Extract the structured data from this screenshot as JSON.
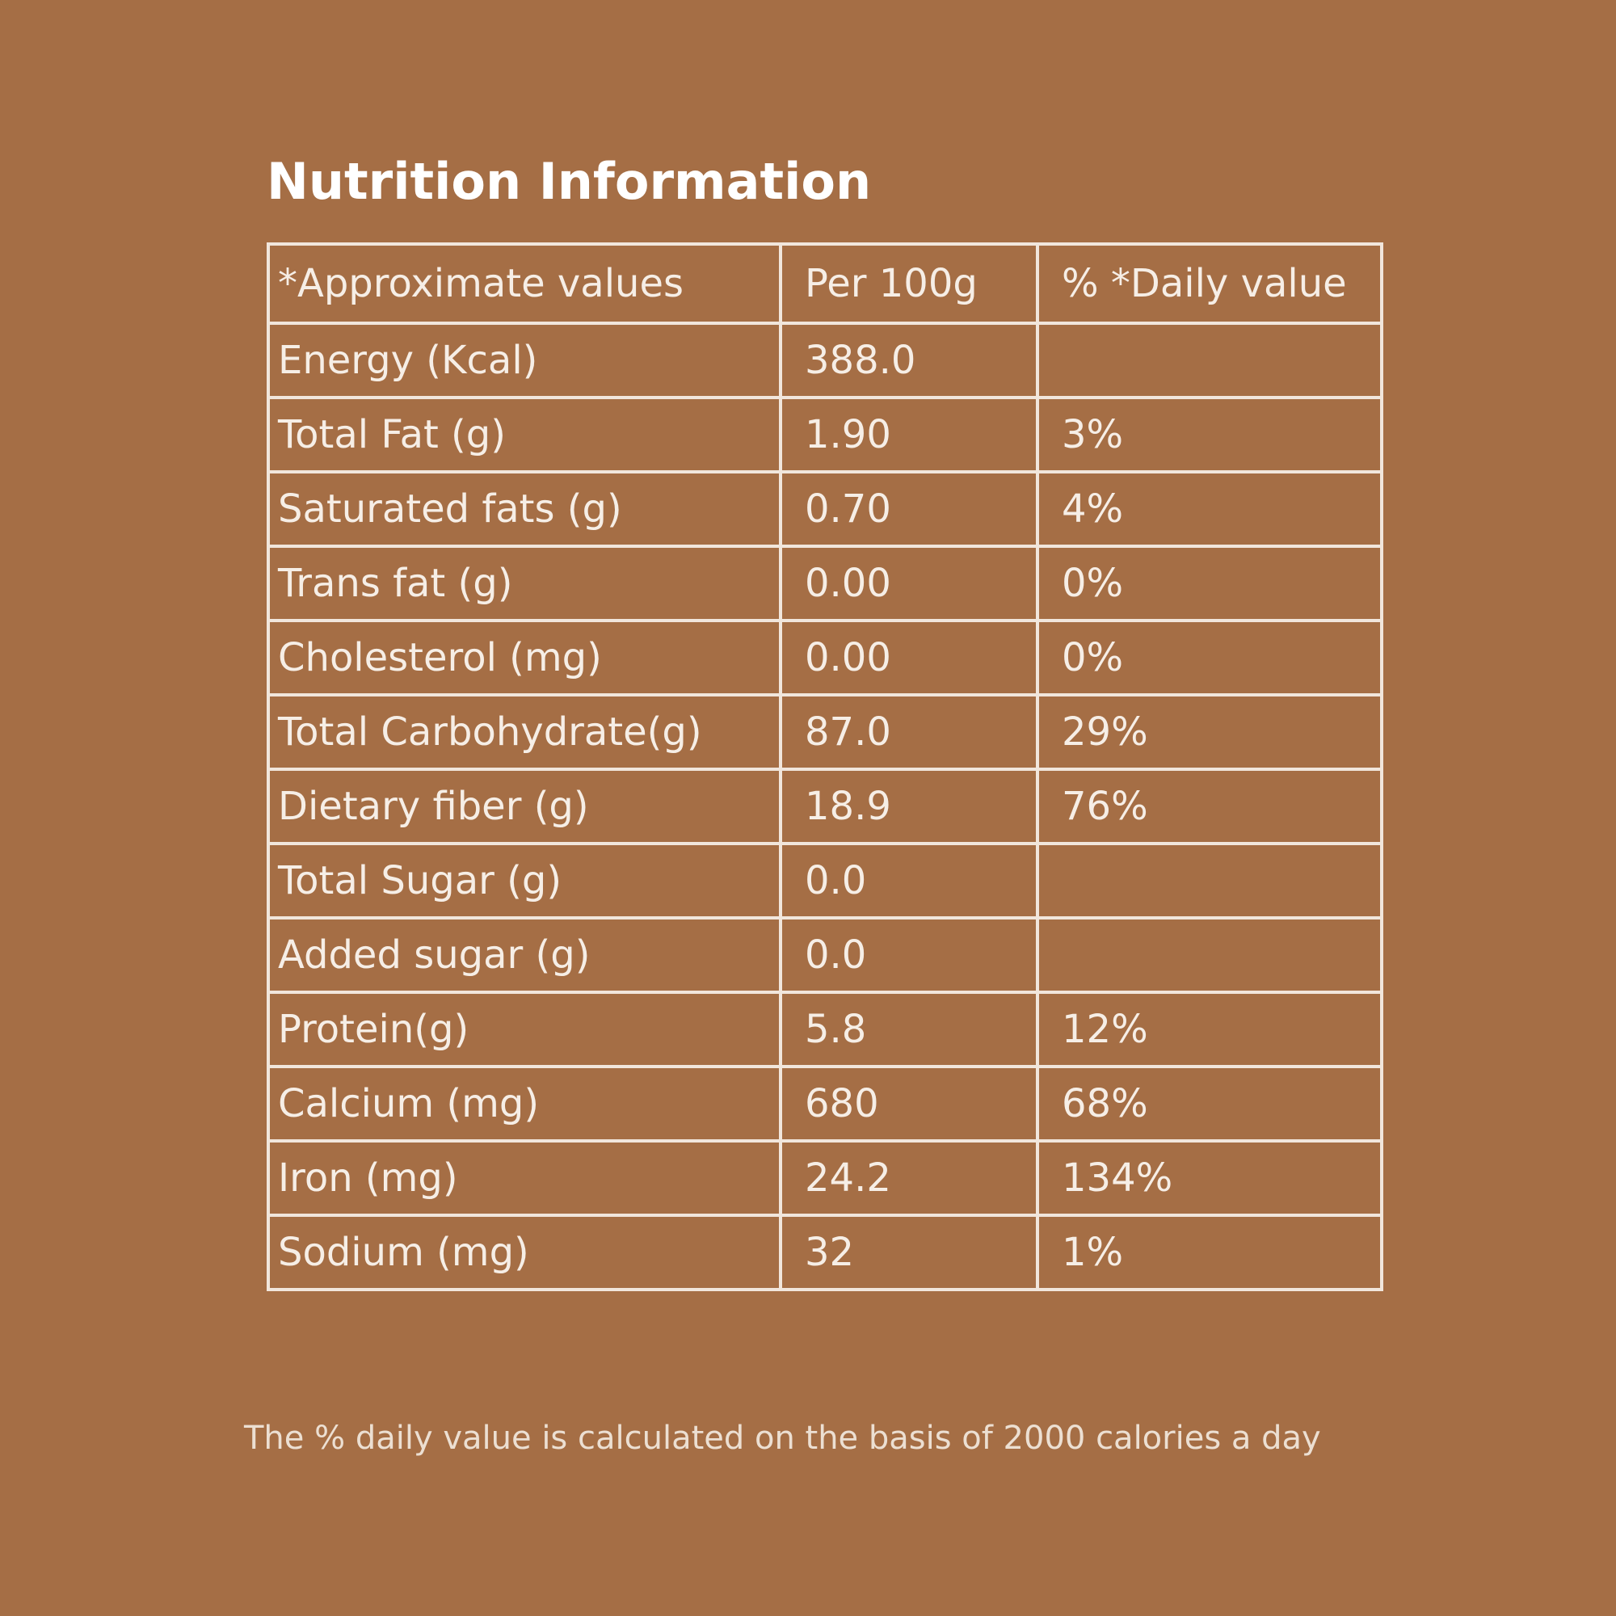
{
  "title": "Nutrition Information",
  "table": {
    "headers": [
      "*Approximate values",
      "Per 100g",
      "% *Daily value"
    ],
    "rows": [
      {
        "nutrient": "Energy (Kcal)",
        "per100g": "388.0",
        "daily": ""
      },
      {
        "nutrient": "Total Fat (g)",
        "per100g": "1.90",
        "daily": "3%"
      },
      {
        "nutrient": "Saturated fats (g)",
        "per100g": "0.70",
        "daily": "4%"
      },
      {
        "nutrient": "Trans fat (g)",
        "per100g": "0.00",
        "daily": "0%"
      },
      {
        "nutrient": "Cholesterol (mg)",
        "per100g": "0.00",
        "daily": "0%"
      },
      {
        "nutrient": "Total Carbohydrate(g)",
        "per100g": "87.0",
        "daily": "29%"
      },
      {
        "nutrient": "Dietary fiber (g)",
        "per100g": "18.9",
        "daily": "76%"
      },
      {
        "nutrient": "Total Sugar (g)",
        "per100g": "0.0",
        "daily": ""
      },
      {
        "nutrient": "Added sugar (g)",
        "per100g": "0.0",
        "daily": ""
      },
      {
        "nutrient": "Protein(g)",
        "per100g": "5.8",
        "daily": "12%"
      },
      {
        "nutrient": "Calcium (mg)",
        "per100g": "680",
        "daily": "68%"
      },
      {
        "nutrient": "Iron (mg)",
        "per100g": "24.2",
        "daily": "134%"
      },
      {
        "nutrient": "Sodium (mg)",
        "per100g": "32",
        "daily": "1%"
      }
    ]
  },
  "footnote": "The % daily value is calculated on the basis of 2000 calories a day",
  "colors": {
    "background": "#a56e45",
    "text": "#f6eee6",
    "border": "#f1e6dc"
  }
}
